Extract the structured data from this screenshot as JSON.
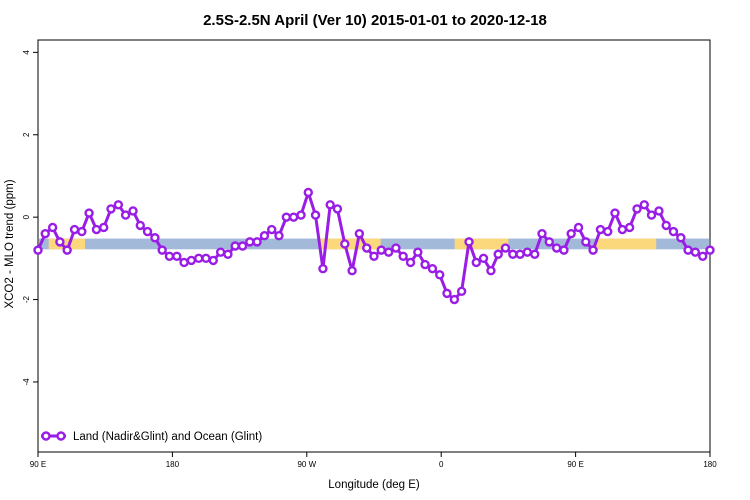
{
  "chart_data": {
    "type": "line",
    "title": "2.5S-2.5N April (Ver 10)   2015-01-01 to 2020-12-18",
    "xlabel": "Longitude (deg E)",
    "ylabel": "XCO2 - MLO trend (ppm)",
    "ylim": [
      -5.7,
      4.3
    ],
    "yticks": [
      -4,
      -2,
      0,
      2,
      4
    ],
    "xticks": [
      {
        "pos": 0,
        "label": "90 E"
      },
      {
        "pos": 1,
        "label": "180"
      },
      {
        "pos": 2,
        "label": "90 W"
      },
      {
        "pos": 3,
        "label": "0"
      },
      {
        "pos": 4,
        "label": "90 E"
      },
      {
        "pos": 5,
        "label": "180"
      }
    ],
    "grid": false,
    "legend": {
      "position": "bottom-left",
      "entries": [
        "Land (Nadir&Glint) and Ocean (Glint)"
      ]
    },
    "colors": {
      "series": "#9a1de6",
      "ocean_band": "#a3b9d9",
      "land_band": "#fbd87c",
      "axes": "#000000"
    },
    "band": {
      "y_top": -0.52,
      "y_bottom": -0.78,
      "land_segments": [
        [
          0.08,
          0.35
        ],
        [
          2.1,
          2.55
        ],
        [
          3.1,
          3.5
        ],
        [
          4.15,
          4.6
        ]
      ]
    },
    "series": [
      {
        "name": "Land (Nadir&Glint) and Ocean (Glint)",
        "x": [
          0.0,
          0.054,
          0.109,
          0.163,
          0.217,
          0.272,
          0.326,
          0.38,
          0.435,
          0.489,
          0.543,
          0.598,
          0.652,
          0.707,
          0.761,
          0.815,
          0.87,
          0.924,
          0.978,
          1.033,
          1.087,
          1.141,
          1.196,
          1.25,
          1.304,
          1.359,
          1.413,
          1.467,
          1.522,
          1.576,
          1.63,
          1.685,
          1.739,
          1.793,
          1.848,
          1.902,
          1.957,
          2.011,
          2.065,
          2.12,
          2.174,
          2.228,
          2.283,
          2.337,
          2.391,
          2.446,
          2.5,
          2.554,
          2.609,
          2.663,
          2.717,
          2.772,
          2.826,
          2.88,
          2.935,
          2.989,
          3.043,
          3.098,
          3.152,
          3.207,
          3.261,
          3.315,
          3.37,
          3.424,
          3.478,
          3.533,
          3.587,
          3.641,
          3.696,
          3.75,
          3.804,
          3.859,
          3.913,
          3.967,
          4.022,
          4.076,
          4.13,
          4.185,
          4.239,
          4.293,
          4.348,
          4.402,
          4.457,
          4.511,
          4.565,
          4.62,
          4.674,
          4.728,
          4.783,
          4.837,
          4.891,
          4.946,
          5.0
        ],
        "y": [
          -0.8,
          -0.4,
          -0.25,
          -0.6,
          -0.8,
          -0.3,
          -0.35,
          0.1,
          -0.3,
          -0.25,
          0.2,
          0.3,
          0.05,
          0.15,
          -0.2,
          -0.35,
          -0.5,
          -0.8,
          -0.95,
          -0.95,
          -1.1,
          -1.05,
          -1.0,
          -1.0,
          -1.05,
          -0.85,
          -0.9,
          -0.7,
          -0.7,
          -0.6,
          -0.6,
          -0.45,
          -0.3,
          -0.45,
          0.0,
          0.0,
          0.05,
          0.6,
          0.05,
          -1.25,
          0.3,
          0.2,
          -0.65,
          -1.3,
          -0.4,
          -0.75,
          -0.95,
          -0.8,
          -0.85,
          -0.75,
          -0.95,
          -1.1,
          -0.85,
          -1.15,
          -1.25,
          -1.4,
          -1.85,
          -2.0,
          -1.8,
          -0.6,
          -1.1,
          -1.0,
          -1.3,
          -0.9,
          -0.75,
          -0.9,
          -0.9,
          -0.85,
          -0.9,
          -0.4,
          -0.6,
          -0.75,
          -0.8,
          -0.4,
          -0.25,
          -0.6,
          -0.8,
          -0.3,
          -0.35,
          0.1,
          -0.3,
          -0.25,
          0.2,
          0.3,
          0.05,
          0.15,
          -0.2,
          -0.35,
          -0.5,
          -0.8,
          -0.85,
          -0.95,
          -0.8
        ]
      }
    ]
  }
}
